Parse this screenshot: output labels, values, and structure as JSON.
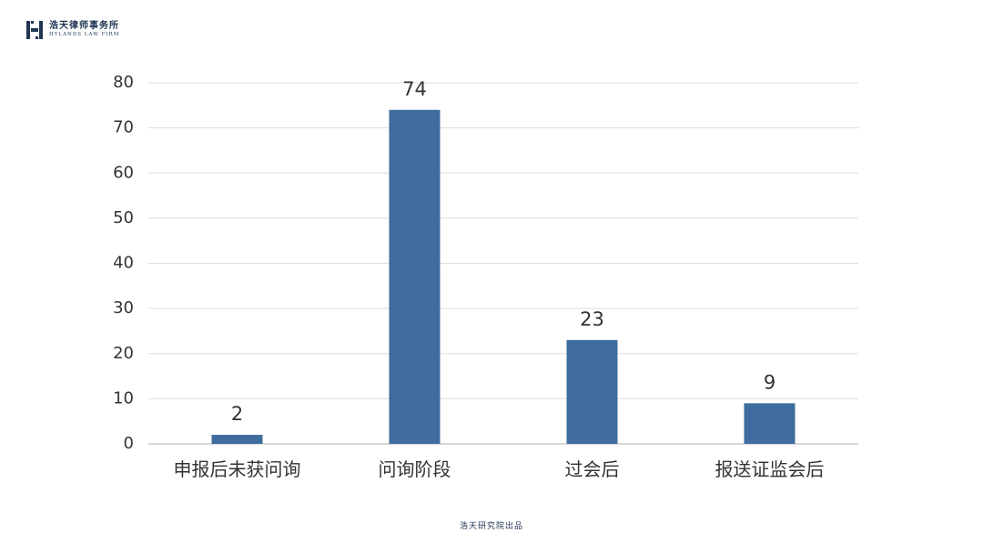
{
  "brand": {
    "name_cn": "浩天律师事务所",
    "name_en": "HYLANDS LAW FIRM"
  },
  "footer": "浩天研究院出品",
  "colors": {
    "bar": "#3e6c9e",
    "grid": "#dddddd",
    "axis": "#c8c8c8",
    "text": "#333333"
  },
  "chart_data": {
    "type": "bar",
    "categories": [
      "申报后未获问询",
      "问询阶段",
      "过会后",
      "报送证监会后"
    ],
    "values": [
      2,
      74,
      23,
      9
    ],
    "yticks": [
      0,
      10,
      20,
      30,
      40,
      50,
      60,
      70,
      80
    ],
    "ylim": [
      0,
      80
    ],
    "grid": true,
    "data_labels": true
  }
}
